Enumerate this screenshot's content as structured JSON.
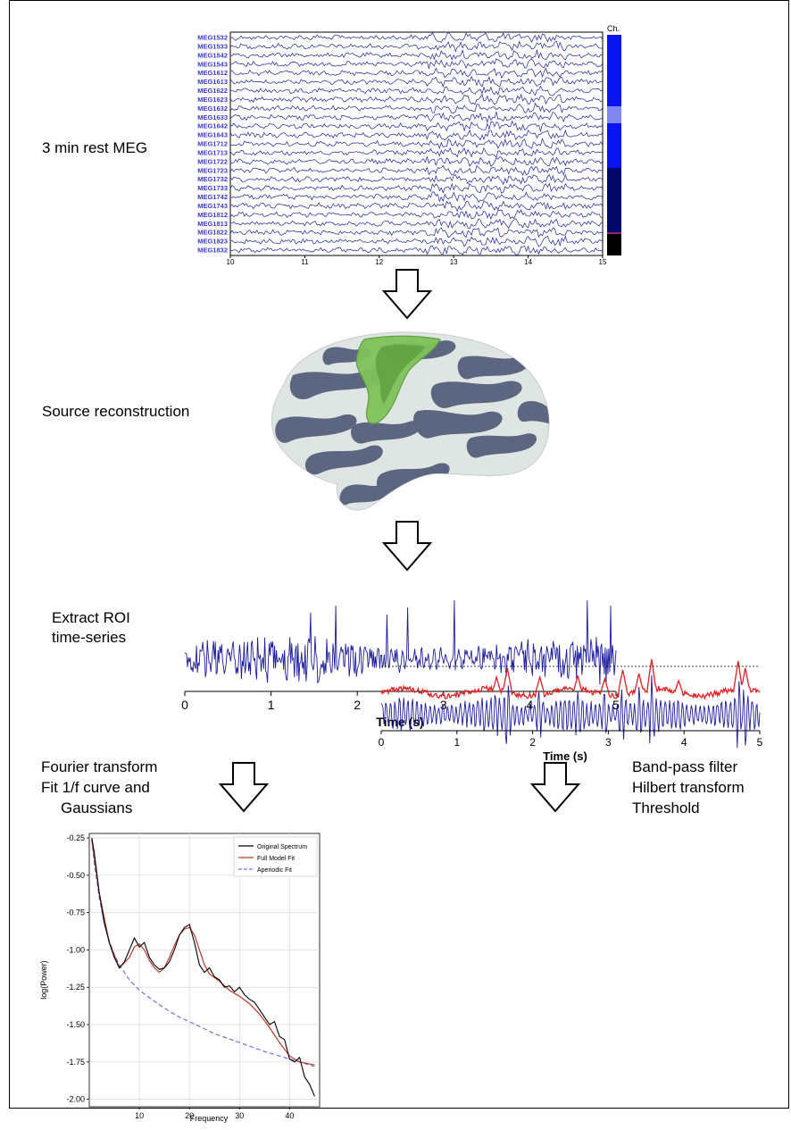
{
  "steps": {
    "meg_label": "3 min rest MEG",
    "source_label": "Source reconstruction",
    "roi_label_line1": "Extract ROI",
    "roi_label_line2": "time-series",
    "fourier_line1": "Fourier transform",
    "fourier_line2": "Fit 1/f curve and",
    "fourier_line3": "Gaussians",
    "bandpass_line1": "Band-pass filter",
    "bandpass_line2": "Hilbert transform",
    "bandpass_line3": "Threshold"
  },
  "meg_panel": {
    "channels": [
      "MEG1532",
      "MEG1533",
      "MEG1542",
      "MEG1543",
      "MEG1612",
      "MEG1613",
      "MEG1622",
      "MEG1623",
      "MEG1632",
      "MEG1633",
      "MEG1642",
      "MEG1643",
      "MEG1712",
      "MEG1713",
      "MEG1722",
      "MEG1723",
      "MEG1732",
      "MEG1733",
      "MEG1742",
      "MEG1743",
      "MEG1812",
      "MEG1813",
      "MEG1822",
      "MEG1823",
      "MEG1832"
    ],
    "x_ticks": [
      "10",
      "11",
      "12",
      "13",
      "14",
      "15"
    ],
    "side_label": "Ch.",
    "trace_color": "#1c1c9e"
  },
  "chart_data": [
    {
      "type": "line",
      "title": "",
      "xlabel": "Time (s)",
      "ylabel": "",
      "xlim": [
        0,
        5
      ],
      "x_ticks": [
        "0",
        "1",
        "2",
        "3",
        "4",
        "5"
      ],
      "series": [
        {
          "color": "#1c1c9e"
        }
      ]
    },
    {
      "type": "line",
      "title": "",
      "xlabel": "Frequency",
      "ylabel": "log(Power)",
      "xlim": [
        0,
        46
      ],
      "ylim": [
        -2.05,
        -0.22
      ],
      "x_ticks": [
        "10",
        "20",
        "30",
        "40"
      ],
      "y_ticks": [
        "-0.25",
        "-0.50",
        "-0.75",
        "-1.00",
        "-1.25",
        "-1.50",
        "-1.75",
        "-2.00"
      ],
      "grid": true,
      "legend_position": "top-right",
      "series": [
        {
          "name": "Original Spectrum",
          "color": "#000000",
          "x": [
            0.5,
            1,
            2,
            3,
            4,
            5,
            6,
            7,
            8,
            9,
            10,
            11,
            12,
            13,
            14,
            15,
            16,
            17,
            18,
            19,
            20,
            21,
            22,
            23,
            24,
            25,
            26,
            27,
            28,
            29,
            30,
            31,
            32,
            33,
            34,
            35,
            36,
            37,
            38,
            39,
            40,
            41,
            42,
            43,
            44,
            45
          ],
          "y": [
            -0.25,
            -0.35,
            -0.62,
            -0.82,
            -0.95,
            -1.05,
            -1.12,
            -1.08,
            -1.0,
            -0.92,
            -0.98,
            -0.95,
            -1.05,
            -1.1,
            -1.13,
            -1.12,
            -1.08,
            -1.0,
            -0.9,
            -0.85,
            -0.83,
            -0.95,
            -1.1,
            -1.15,
            -1.12,
            -1.18,
            -1.2,
            -1.25,
            -1.24,
            -1.28,
            -1.25,
            -1.3,
            -1.33,
            -1.35,
            -1.4,
            -1.45,
            -1.5,
            -1.48,
            -1.58,
            -1.6,
            -1.73,
            -1.75,
            -1.72,
            -1.85,
            -1.9,
            -1.98
          ]
        },
        {
          "name": "Full Model Fit",
          "color": "#c0392b",
          "x": [
            0.5,
            2,
            4,
            6,
            8,
            9,
            10,
            11,
            12,
            13,
            14,
            15,
            16,
            17,
            18,
            19,
            20,
            21,
            22,
            23,
            24,
            26,
            28,
            30,
            32,
            34,
            36,
            38,
            40,
            42,
            45
          ],
          "y": [
            -0.26,
            -0.62,
            -0.95,
            -1.12,
            -1.05,
            -0.98,
            -0.96,
            -1.0,
            -1.07,
            -1.12,
            -1.15,
            -1.12,
            -1.05,
            -0.97,
            -0.9,
            -0.86,
            -0.85,
            -0.9,
            -1.0,
            -1.1,
            -1.16,
            -1.21,
            -1.27,
            -1.31,
            -1.36,
            -1.43,
            -1.52,
            -1.62,
            -1.71,
            -1.75,
            -1.77
          ]
        },
        {
          "name": "Aperiodic Fit",
          "color": "#7a6fd6",
          "dashed": true,
          "x": [
            0.5,
            1,
            2,
            3,
            4,
            5,
            6,
            8,
            10,
            12,
            15,
            18,
            20,
            25,
            30,
            35,
            40,
            45
          ],
          "y": [
            -0.26,
            -0.42,
            -0.65,
            -0.82,
            -0.94,
            -1.03,
            -1.1,
            -1.2,
            -1.27,
            -1.32,
            -1.39,
            -1.45,
            -1.48,
            -1.56,
            -1.62,
            -1.68,
            -1.73,
            -1.78
          ]
        }
      ]
    },
    {
      "type": "line",
      "title": "",
      "xlabel": "Time (s)",
      "ylabel": "",
      "xlim": [
        0,
        5
      ],
      "x_ticks": [
        "0",
        "1",
        "2",
        "3",
        "4",
        "5"
      ],
      "series": [
        {
          "color": "#1c1c9e"
        },
        {
          "color": "#e02020"
        },
        {
          "color": "#000000",
          "dashed": true
        }
      ]
    }
  ]
}
